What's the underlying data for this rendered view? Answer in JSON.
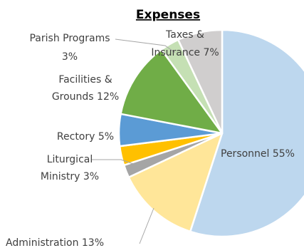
{
  "chart_data": {
    "type": "pie",
    "title": "Expenses",
    "start_angle_deg": 0,
    "direction": "clockwise",
    "legend": "none",
    "slices": [
      {
        "name": "Personnel",
        "value": 55,
        "label": "Personnel 55%",
        "color": "#bdd7ee"
      },
      {
        "name": "Administration",
        "value": 13,
        "label": "Administration 13%",
        "color": "#ffe699"
      },
      {
        "name": "",
        "value": 2,
        "label": "",
        "color": "#a5a5a5"
      },
      {
        "name": "Liturgical Ministry",
        "value": 3,
        "label": "Liturgical Ministry 3%",
        "label_lines": [
          "Liturgical",
          "Ministry 3%"
        ],
        "color": "#ffc000"
      },
      {
        "name": "Rectory",
        "value": 5,
        "label": "Rectory 5%",
        "color": "#5b9bd5"
      },
      {
        "name": "Facilities & Grounds",
        "value": 12,
        "label": "Facilities & Grounds 12%",
        "label_lines": [
          "Facilities &",
          "Grounds 12%"
        ],
        "color": "#70ad47"
      },
      {
        "name": "Parish Programs",
        "value": 3,
        "label": "Parish Programs 3%",
        "label_lines": [
          "Parish Programs",
          "3%"
        ],
        "color": "#c5e0b4"
      },
      {
        "name": "Taxes & Insurance",
        "value": 7,
        "label": "Taxes & Insurance 7%",
        "label_lines": [
          "Taxes &",
          "Insurance 7%"
        ],
        "color": "#d0cece"
      }
    ]
  }
}
